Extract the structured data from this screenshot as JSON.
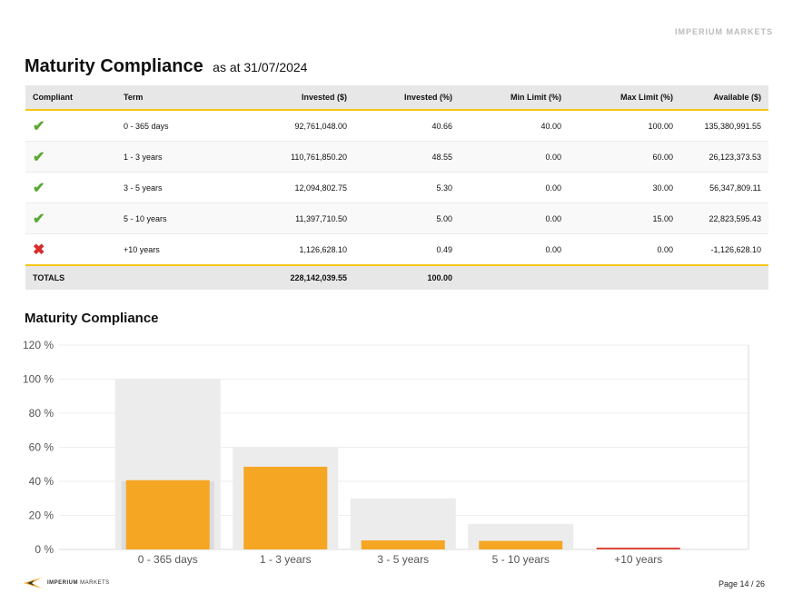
{
  "top_logo": "IMPERIUM MARKETS",
  "header": {
    "title": "Maturity Compliance",
    "subtitle": "as at 31/07/2024"
  },
  "table": {
    "columns": [
      "Compliant",
      "Term",
      "Invested ($)",
      "Invested (%)",
      "Min Limit (%)",
      "Max Limit (%)",
      "Available ($)"
    ],
    "rows": [
      {
        "status": "ok",
        "term": "0 - 365 days",
        "invested": "92,761,048.00",
        "invested_pct": "40.66",
        "min": "40.00",
        "max": "100.00",
        "available": "135,380,991.55"
      },
      {
        "status": "ok",
        "term": "1 - 3 years",
        "invested": "110,761,850.20",
        "invested_pct": "48.55",
        "min": "0.00",
        "max": "60.00",
        "available": "26,123,373.53"
      },
      {
        "status": "ok",
        "term": "3 - 5 years",
        "invested": "12,094,802.75",
        "invested_pct": "5.30",
        "min": "0.00",
        "max": "30.00",
        "available": "56,347,809.11"
      },
      {
        "status": "ok",
        "term": "5 - 10 years",
        "invested": "11,397,710.50",
        "invested_pct": "5.00",
        "min": "0.00",
        "max": "15.00",
        "available": "22,823,595.43"
      },
      {
        "status": "bad",
        "term": "+10 years",
        "invested": "1,126,628.10",
        "invested_pct": "0.49",
        "min": "0.00",
        "max": "0.00",
        "available": "-1,126,628.10"
      }
    ],
    "totals": {
      "label": "TOTALS",
      "invested": "228,142,039.55",
      "invested_pct": "100.00"
    }
  },
  "chart_title": "Maturity Compliance",
  "chart_data": {
    "type": "bar",
    "title": "Maturity Compliance",
    "categories": [
      "0 - 365 days",
      "1 - 3 years",
      "3 - 5 years",
      "5 - 10 years",
      "+10 years"
    ],
    "series": [
      {
        "name": "",
        "role": "max-limit",
        "values": [
          100,
          60,
          30,
          15,
          0
        ],
        "color": "#ececec"
      },
      {
        "name": "",
        "role": "min-limit",
        "values": [
          40,
          0,
          0,
          0,
          0
        ],
        "color": "#dcdcdc"
      },
      {
        "name": "",
        "role": "invested",
        "values": [
          40.66,
          48.55,
          5.3,
          5.0,
          0.49
        ],
        "colors": [
          "#f5a623",
          "#f5a623",
          "#f5a623",
          "#f5a623",
          "#e04a3a"
        ]
      }
    ],
    "yticks": [
      "0 %",
      "20 %",
      "40 %",
      "60 %",
      "80 %",
      "100 %",
      "120 %"
    ],
    "ylim": [
      0,
      120
    ],
    "grid": true,
    "xlabel": "",
    "ylabel": ""
  },
  "footer": {
    "logo_bold": "IMPERIUM",
    "logo_light": "MARKETS",
    "page": "Page 14 / 26"
  },
  "colors": {
    "accent": "#f5c518",
    "bar": "#f5a623",
    "ok": "#5aa832",
    "bad": "#d92b2b"
  }
}
